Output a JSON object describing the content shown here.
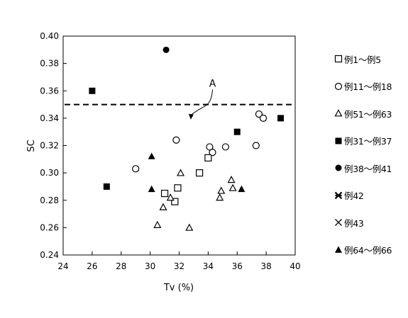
{
  "chart_data": {
    "type": "scatter",
    "xlabel": "Tv (%)",
    "ylabel": "SC",
    "xlim": [
      24,
      40
    ],
    "ylim": [
      0.24,
      0.4
    ],
    "x_ticks": [
      "24",
      "26",
      "28",
      "30",
      "32",
      "34",
      "36",
      "38",
      "40"
    ],
    "y_ticks": [
      "0.24",
      "0.26",
      "0.28",
      "0.30",
      "0.32",
      "0.34",
      "0.36",
      "0.38",
      "0.40"
    ],
    "reference_line": {
      "y": 0.35,
      "style": "dashed"
    },
    "annotation": {
      "text": "A",
      "from": [
        34.3,
        0.362
      ],
      "to": [
        32.8,
        0.339
      ]
    },
    "legend_position": "right",
    "series": [
      {
        "name": "例1〜例5",
        "marker": "open-square",
        "points": [
          [
            31.0,
            0.285
          ],
          [
            31.7,
            0.279
          ],
          [
            31.9,
            0.289
          ],
          [
            33.4,
            0.3
          ],
          [
            34.0,
            0.311
          ]
        ]
      },
      {
        "name": "例11〜例18",
        "marker": "open-circle",
        "points": [
          [
            29.0,
            0.303
          ],
          [
            31.8,
            0.324
          ],
          [
            34.1,
            0.319
          ],
          [
            34.3,
            0.315
          ],
          [
            35.2,
            0.319
          ],
          [
            37.3,
            0.32
          ],
          [
            37.5,
            0.343
          ],
          [
            37.8,
            0.34
          ]
        ]
      },
      {
        "name": "例51〜例63",
        "marker": "open-triangle",
        "points": [
          [
            30.5,
            0.262
          ],
          [
            30.9,
            0.275
          ],
          [
            31.4,
            0.282
          ],
          [
            32.1,
            0.3
          ],
          [
            32.7,
            0.26
          ],
          [
            34.8,
            0.282
          ],
          [
            34.9,
            0.287
          ],
          [
            35.6,
            0.295
          ],
          [
            35.7,
            0.289
          ]
        ]
      },
      {
        "name": "例31〜例37",
        "marker": "filled-square",
        "points": [
          [
            26.0,
            0.36
          ],
          [
            27.0,
            0.29
          ],
          [
            36.0,
            0.33
          ],
          [
            39.0,
            0.34
          ]
        ]
      },
      {
        "name": "例38〜例41",
        "marker": "filled-circle",
        "points": [
          [
            31.1,
            0.39
          ]
        ]
      },
      {
        "name": "例42",
        "marker": "asterisk",
        "points": []
      },
      {
        "name": "例43",
        "marker": "cross",
        "points": []
      },
      {
        "name": "例64〜例66",
        "marker": "filled-triangle",
        "points": [
          [
            30.1,
            0.312
          ],
          [
            30.1,
            0.288
          ],
          [
            36.3,
            0.288
          ]
        ]
      }
    ]
  }
}
